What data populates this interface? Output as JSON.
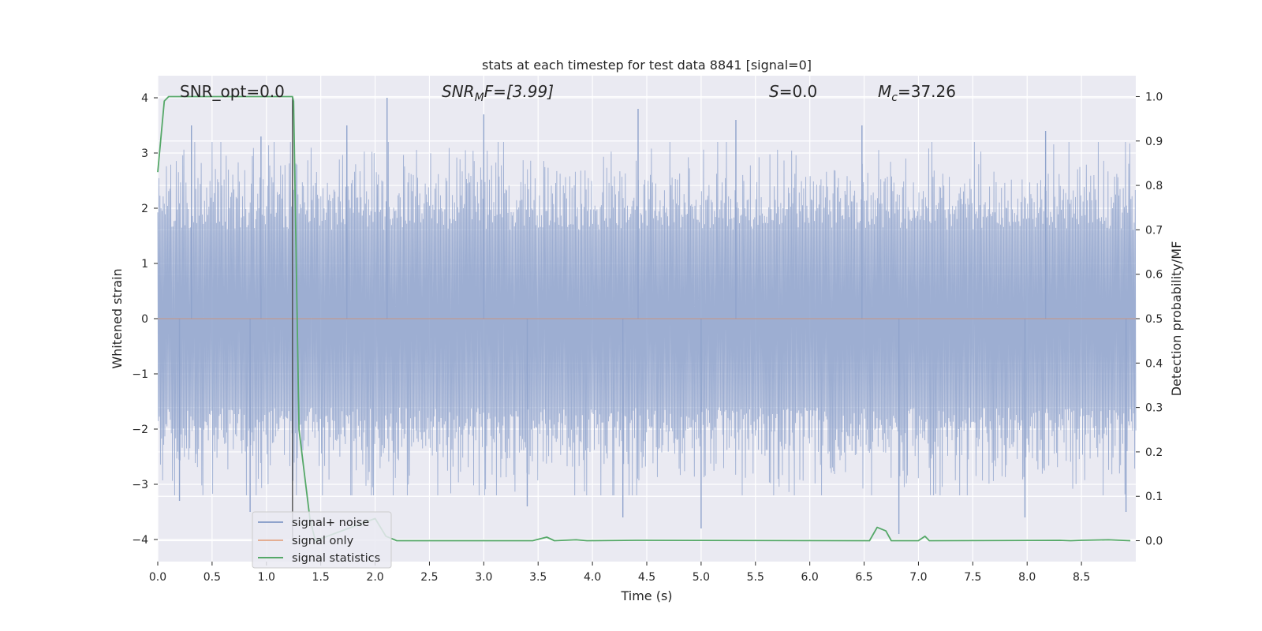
{
  "chart_data": {
    "type": "line",
    "title": "stats at each timestep for test data 8841 [signal=0]",
    "xlabel": "Time (s)",
    "ylabel_left": "Whitened strain",
    "ylabel_right": "Detection probability/MF",
    "xlim": [
      0.0,
      9.0
    ],
    "ylim_left": [
      -4.4,
      4.4
    ],
    "ylim_right": [
      -0.047,
      1.047
    ],
    "x_ticks": [
      "0.0",
      "0.5",
      "1.0",
      "1.5",
      "2.0",
      "2.5",
      "3.0",
      "3.5",
      "4.0",
      "4.5",
      "5.0",
      "5.5",
      "6.0",
      "6.5",
      "7.0",
      "7.5",
      "8.0",
      "8.5"
    ],
    "y_ticks_left": [
      "4",
      "3",
      "2",
      "1",
      "0",
      "−1",
      "−2",
      "−3",
      "−4"
    ],
    "y_ticks_right": [
      "1.0",
      "0.9",
      "0.8",
      "0.7",
      "0.6",
      "0.5",
      "0.4",
      "0.3",
      "0.2",
      "0.1",
      "0.0"
    ],
    "grid": true,
    "legend_position": "bottom-left",
    "annotations": {
      "snr_opt": "SNR_opt=0.0",
      "snr_mf_prefix": "SNR",
      "snr_mf_sub": "M",
      "snr_mf_suffix": "F=[3.99]",
      "s_prefix": "S",
      "s_suffix": "=0.0",
      "mc_prefix": "M",
      "mc_sub": "c",
      "mc_suffix": "=37.26"
    },
    "series": [
      {
        "name": "signal+ noise",
        "color": "#8fa3cc",
        "axis": "left",
        "description": "dense noise strain, amplitude mostly within ±2.3, peaks near ±4",
        "amplitude_envelope": 2.3,
        "peak_values": [
          {
            "x": 0.31,
            "y": 3.5
          },
          {
            "x": 0.95,
            "y": 3.3
          },
          {
            "x": 1.74,
            "y": 3.5
          },
          {
            "x": 2.11,
            "y": 4.0
          },
          {
            "x": 3.0,
            "y": 3.7
          },
          {
            "x": 4.42,
            "y": 3.8
          },
          {
            "x": 5.32,
            "y": 3.6
          },
          {
            "x": 6.48,
            "y": 3.5
          },
          {
            "x": 8.17,
            "y": 3.4
          },
          {
            "x": 0.2,
            "y": -3.3
          },
          {
            "x": 0.85,
            "y": -3.5
          },
          {
            "x": 3.4,
            "y": -3.4
          },
          {
            "x": 4.28,
            "y": -3.6
          },
          {
            "x": 5.0,
            "y": -3.8
          },
          {
            "x": 6.82,
            "y": -3.9
          },
          {
            "x": 7.98,
            "y": -3.6
          },
          {
            "x": 8.91,
            "y": -3.5
          }
        ]
      },
      {
        "name": "signal only",
        "color": "#dd8452",
        "axis": "left",
        "x": [
          0.0,
          9.0
        ],
        "y": [
          0.0,
          0.0
        ]
      },
      {
        "name": "signal statistics",
        "color": "#55a868",
        "axis": "right",
        "x": [
          0.0,
          0.06,
          0.1,
          1.2,
          1.24,
          1.25,
          1.3,
          1.4,
          1.45,
          2.0,
          2.1,
          2.2,
          3.45,
          3.58,
          3.65,
          3.85,
          3.95,
          4.4,
          6.55,
          6.62,
          6.7,
          6.75,
          7.0,
          7.06,
          7.1,
          8.3,
          8.4,
          8.5,
          8.75,
          8.95
        ],
        "y": [
          0.83,
          0.99,
          1.0,
          1.0,
          1.0,
          0.99,
          0.25,
          0.05,
          0.0,
          0.05,
          0.01,
          0.0,
          0.0,
          0.008,
          0.0,
          0.002,
          0.0,
          0.001,
          0.0,
          0.03,
          0.022,
          0.0,
          0.0,
          0.01,
          0.0,
          0.001,
          0.0,
          0.001,
          0.002,
          0.0
        ]
      }
    ],
    "marker_line_x": 1.24
  }
}
